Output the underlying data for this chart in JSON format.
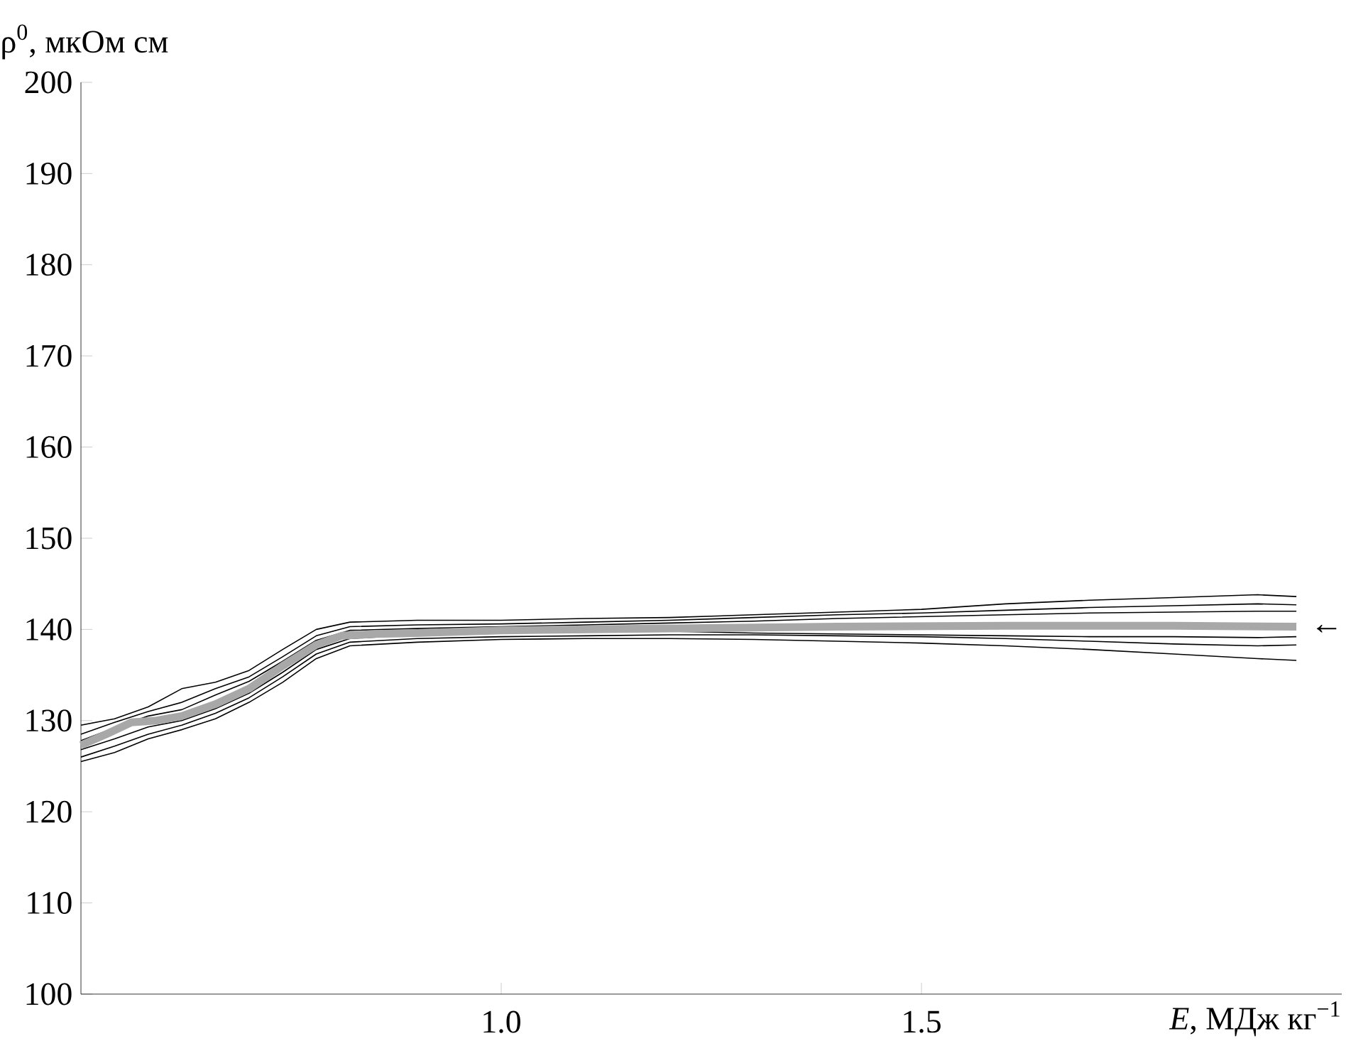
{
  "chart_data": {
    "type": "line",
    "xlabel": "*E*, МДж кг$^{−1}$",
    "ylabel": "ρ$^{0}$, мкОм см",
    "xlim": [
      0.5,
      2.0
    ],
    "ylim": [
      100,
      200
    ],
    "xticks": [
      {
        "value": 1.0,
        "label": "1.0"
      },
      {
        "value": 1.5,
        "label": "1.5"
      }
    ],
    "yticks": [
      100,
      110,
      120,
      130,
      140,
      150,
      160,
      170,
      180,
      190,
      200
    ],
    "series": [
      {
        "color": "#000000",
        "x": [
          0.5,
          0.54,
          0.58,
          0.62,
          0.66,
          0.7,
          0.74,
          0.78,
          0.82,
          0.9,
          1.0,
          1.1,
          1.2,
          1.3,
          1.4,
          1.5,
          1.6,
          1.7,
          1.8,
          1.9,
          1.946
        ],
        "values": [
          129.5,
          130.2,
          131.5,
          133.5,
          134.2,
          135.5,
          137.8,
          140.0,
          140.8,
          141.0,
          141.0,
          141.2,
          141.3,
          141.6,
          141.9,
          142.2,
          142.8,
          143.2,
          143.5,
          143.8,
          143.6
        ]
      },
      {
        "color": "#000000",
        "x": [
          0.5,
          0.54,
          0.58,
          0.62,
          0.66,
          0.7,
          0.74,
          0.78,
          0.82,
          0.9,
          1.0,
          1.1,
          1.2,
          1.3,
          1.4,
          1.5,
          1.6,
          1.7,
          1.8,
          1.9,
          1.946
        ],
        "values": [
          128.5,
          129.8,
          131.0,
          132.0,
          133.5,
          134.8,
          137.0,
          139.3,
          140.3,
          140.5,
          140.6,
          140.8,
          141.0,
          141.3,
          141.6,
          141.8,
          142.1,
          142.4,
          142.6,
          142.8,
          142.7
        ]
      },
      {
        "color": "#000000",
        "x": [
          0.5,
          0.54,
          0.58,
          0.62,
          0.66,
          0.7,
          0.74,
          0.78,
          0.82,
          0.9,
          1.0,
          1.1,
          1.2,
          1.3,
          1.4,
          1.5,
          1.6,
          1.7,
          1.8,
          1.9,
          1.946
        ],
        "values": [
          127.8,
          129.2,
          130.5,
          131.2,
          132.8,
          134.3,
          136.5,
          138.8,
          139.9,
          140.1,
          140.3,
          140.5,
          140.7,
          140.9,
          141.2,
          141.4,
          141.6,
          141.8,
          141.9,
          142.0,
          142.0
        ]
      },
      {
        "color": "#000000",
        "x": [
          0.5,
          0.54,
          0.58,
          0.62,
          0.66,
          0.7,
          0.74,
          0.78,
          0.82,
          0.9,
          1.0,
          1.1,
          1.2,
          1.3,
          1.4,
          1.5,
          1.6,
          1.7,
          1.8,
          1.9,
          1.946
        ],
        "values": [
          126.8,
          128.0,
          129.3,
          130.0,
          131.3,
          133.0,
          135.3,
          137.8,
          139.0,
          139.4,
          139.6,
          139.7,
          139.8,
          139.6,
          139.5,
          139.4,
          139.3,
          139.2,
          139.2,
          139.1,
          139.2
        ]
      },
      {
        "color": "#000000",
        "x": [
          0.5,
          0.54,
          0.58,
          0.62,
          0.66,
          0.7,
          0.74,
          0.78,
          0.82,
          0.9,
          1.0,
          1.1,
          1.2,
          1.3,
          1.4,
          1.5,
          1.6,
          1.7,
          1.8,
          1.9,
          1.946
        ],
        "values": [
          126.0,
          127.2,
          128.5,
          129.5,
          130.8,
          132.5,
          134.8,
          137.3,
          138.6,
          139.0,
          139.2,
          139.3,
          139.4,
          139.4,
          139.3,
          139.2,
          139.0,
          138.7,
          138.4,
          138.2,
          138.3
        ]
      },
      {
        "color": "#000000",
        "x": [
          0.5,
          0.54,
          0.58,
          0.62,
          0.66,
          0.7,
          0.74,
          0.78,
          0.82,
          0.9,
          1.0,
          1.1,
          1.2,
          1.3,
          1.4,
          1.5,
          1.6,
          1.7,
          1.8,
          1.9,
          1.946
        ],
        "values": [
          125.5,
          126.5,
          128.0,
          129.0,
          130.2,
          132.0,
          134.2,
          136.8,
          138.2,
          138.6,
          138.9,
          139.0,
          139.0,
          138.9,
          138.7,
          138.5,
          138.2,
          137.8,
          137.3,
          136.8,
          136.6
        ]
      },
      {
        "color": "#a8a8a8",
        "x": [
          0.5,
          0.53,
          0.56,
          0.59,
          0.62,
          0.66,
          0.7,
          0.74,
          0.78,
          0.81,
          0.85,
          0.9,
          1.0,
          1.2,
          1.4,
          1.6,
          1.8,
          1.946
        ],
        "values": [
          127.3,
          128.5,
          129.8,
          130.0,
          130.5,
          131.8,
          133.5,
          136.0,
          138.3,
          139.3,
          139.5,
          139.6,
          139.9,
          140.1,
          140.3,
          140.4,
          140.4,
          140.3
        ]
      }
    ],
    "annotations": [
      "←"
    ]
  }
}
